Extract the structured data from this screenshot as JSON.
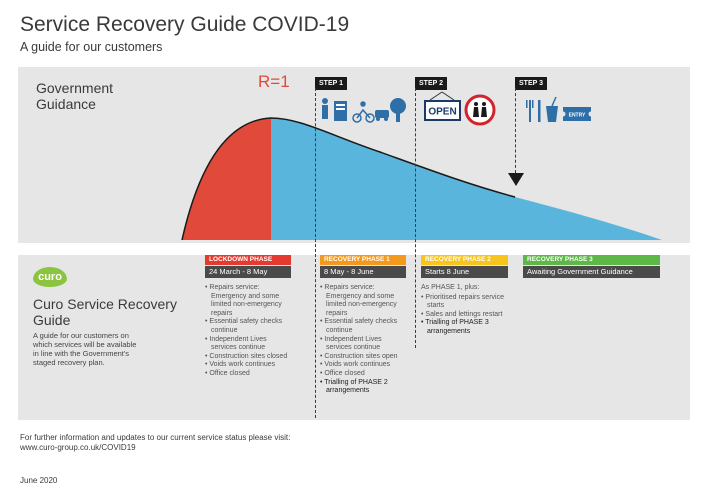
{
  "header": {
    "title": "Service Recovery Guide COVID-19",
    "subtitle": "A guide for our customers"
  },
  "government": {
    "label": "Government Guidance",
    "r_label": "R=1",
    "steps": [
      "STEP 1",
      "STEP 2",
      "STEP 3"
    ],
    "open_sign": "OPEN",
    "entry_ticket": "ENTRY"
  },
  "curo": {
    "logo_text": "curo",
    "title": "Curo Service Recovery Guide",
    "description": "A guide for our customers on which services will be available in line with the Government's staged recovery plan."
  },
  "phases": [
    {
      "name": "LOCKDOWN PHASE",
      "dates": "24 March - 8 May",
      "color": "#e53a2f",
      "intro": "",
      "items": [
        {
          "text": "Repairs service: Emergency and some limited non-emergency repairs",
          "strong": false
        },
        {
          "text": "Essential safety checks continue",
          "strong": false
        },
        {
          "text": "Independent Lives services continue",
          "strong": false
        },
        {
          "text": "Construction sites closed",
          "strong": false
        },
        {
          "text": "Voids work continues",
          "strong": false
        },
        {
          "text": "Office closed",
          "strong": false
        }
      ]
    },
    {
      "name": "RECOVERY PHASE 1",
      "dates": "8 May - 8 June",
      "color": "#f39a1e",
      "intro": "",
      "items": [
        {
          "text": "Repairs service: Emergency and some limited non-emergency repairs",
          "strong": false
        },
        {
          "text": "Essential safety checks continue",
          "strong": false
        },
        {
          "text": "Independent Lives services continue",
          "strong": false
        },
        {
          "text": "Construction sites open",
          "strong": false
        },
        {
          "text": "Voids work continues",
          "strong": false
        },
        {
          "text": "Office closed",
          "strong": false
        },
        {
          "text": "Trialling of PHASE 2 arrangements",
          "strong": true
        }
      ]
    },
    {
      "name": "RECOVERY PHASE 2",
      "dates": "Starts 8 June",
      "color": "#f7c51e",
      "intro": "As PHASE 1, plus:",
      "items": [
        {
          "text": "Prioritised repairs service starts",
          "strong": false
        },
        {
          "text": "Sales and lettings restart",
          "strong": false
        },
        {
          "text": "Trialling of PHASE 3 arrangements",
          "strong": true
        }
      ]
    },
    {
      "name": "RECOVERY PHASE 3",
      "dates": "Awaiting Government Guidance",
      "color": "#5db847",
      "intro": "",
      "items": []
    }
  ],
  "footer": {
    "info": "For further information and updates to our current service status please visit:",
    "url": "www.curo-group.co.uk/COVID19",
    "date": "June 2020"
  },
  "colors": {
    "lockdown_area": "#e14a3b",
    "recovery_area": "#5ab5dc",
    "dash_line": "#2b3a67",
    "panel_bg": "#e6e6e6"
  }
}
